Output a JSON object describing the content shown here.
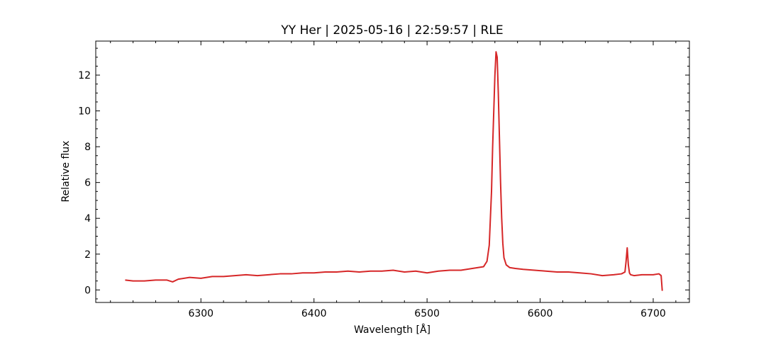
{
  "chart_data": {
    "type": "line",
    "title": "YY Her | 2025-05-16 | 22:59:57 | RLE",
    "xlabel": "Wavelength [Å]",
    "ylabel": "Relative flux",
    "xlim": [
      6207,
      6732
    ],
    "ylim": [
      -0.7,
      13.9
    ],
    "x_ticks": [
      6300,
      6400,
      6500,
      6600,
      6700
    ],
    "x_tick_labels": [
      "6300",
      "6400",
      "6500",
      "6600",
      "6700"
    ],
    "y_ticks": [
      0,
      2,
      4,
      6,
      8,
      10,
      12
    ],
    "y_tick_labels": [
      "0",
      "2",
      "4",
      "6",
      "8",
      "10",
      "12"
    ],
    "grid": false,
    "line_color": "#d62728",
    "series": [
      {
        "x": [
          6233,
          6240,
          6250,
          6260,
          6270,
          6275,
          6280,
          6290,
          6300,
          6310,
          6320,
          6330,
          6340,
          6350,
          6360,
          6370,
          6380,
          6390,
          6400,
          6410,
          6420,
          6430,
          6440,
          6450,
          6460,
          6470,
          6480,
          6490,
          6500,
          6510,
          6520,
          6530,
          6540,
          6545,
          6550,
          6553,
          6555,
          6557,
          6558,
          6559,
          6560,
          6561,
          6562,
          6563,
          6564,
          6565,
          6566,
          6567,
          6568,
          6570,
          6573,
          6578,
          6585,
          6595,
          6605,
          6615,
          6625,
          6635,
          6645,
          6655,
          6665,
          6672,
          6675,
          6676,
          6677,
          6678,
          6679,
          6680,
          6683,
          6690,
          6700,
          6705,
          6707,
          6708
        ],
        "y": [
          0.55,
          0.5,
          0.5,
          0.55,
          0.55,
          0.45,
          0.6,
          0.7,
          0.65,
          0.75,
          0.75,
          0.8,
          0.85,
          0.8,
          0.85,
          0.9,
          0.9,
          0.95,
          0.95,
          1.0,
          1.0,
          1.05,
          1.0,
          1.05,
          1.05,
          1.1,
          1.0,
          1.05,
          0.95,
          1.05,
          1.1,
          1.1,
          1.2,
          1.25,
          1.3,
          1.6,
          2.5,
          5.5,
          8.0,
          10.0,
          12.0,
          13.3,
          13.0,
          11.0,
          8.5,
          6.0,
          4.0,
          2.6,
          1.8,
          1.4,
          1.25,
          1.2,
          1.15,
          1.1,
          1.05,
          1.0,
          1.0,
          0.95,
          0.9,
          0.8,
          0.85,
          0.9,
          1.0,
          1.6,
          2.35,
          1.4,
          0.95,
          0.85,
          0.8,
          0.85,
          0.85,
          0.9,
          0.8,
          -0.05
        ]
      }
    ]
  }
}
